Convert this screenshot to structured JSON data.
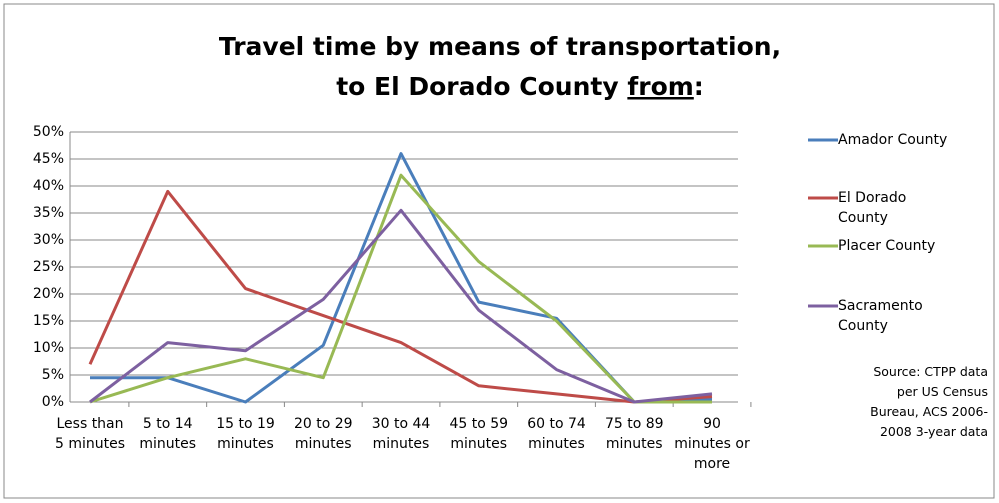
{
  "chart_data": {
    "type": "line",
    "title": {
      "line1": "Travel time by means of transportation,",
      "line2_prefix": "to El Dorado County",
      "line2_underlined": "from",
      "line2_suffix": ":"
    },
    "categories": [
      "Less than 5 minutes",
      "5 to 14 minutes",
      "15 to 19 minutes",
      "20 to 29 minutes",
      "30 to 44 minutes",
      "45 to 59 minutes",
      "60 to 74 minutes",
      "75 to 89 minutes",
      "90 minutes or more"
    ],
    "series": [
      {
        "name": "Amador County",
        "color": "#4a7ebb",
        "values": [
          4.5,
          4.5,
          0,
          10.5,
          46,
          18.5,
          15.5,
          0,
          0.5
        ]
      },
      {
        "name": "El Dorado County",
        "color": "#be4b48",
        "values": [
          7,
          39,
          21,
          16,
          11,
          3,
          1.5,
          0,
          1
        ]
      },
      {
        "name": "Placer County",
        "color": "#98b954",
        "values": [
          0,
          4.5,
          8,
          4.5,
          42,
          26,
          15,
          0,
          0
        ]
      },
      {
        "name": "Sacramento County",
        "color": "#7d60a0",
        "values": [
          0,
          11,
          9.5,
          19,
          35.5,
          17,
          6,
          0,
          1.5
        ]
      }
    ],
    "ylim": [
      0,
      50
    ],
    "yticks": [
      {
        "value": 0,
        "label": "0%"
      },
      {
        "value": 5,
        "label": "5%"
      },
      {
        "value": 10,
        "label": "10%"
      },
      {
        "value": 15,
        "label": "15%"
      },
      {
        "value": 20,
        "label": "20%"
      },
      {
        "value": 25,
        "label": "25%"
      },
      {
        "value": 30,
        "label": "30%"
      },
      {
        "value": 35,
        "label": "35%"
      },
      {
        "value": 40,
        "label": "40%"
      },
      {
        "value": 45,
        "label": "45%"
      },
      {
        "value": 50,
        "label": "50%"
      }
    ],
    "grid": true,
    "legend": "right",
    "source": "Source:  CTPP data per US Census Bureau, ACS 2006-2008 3-year data"
  }
}
